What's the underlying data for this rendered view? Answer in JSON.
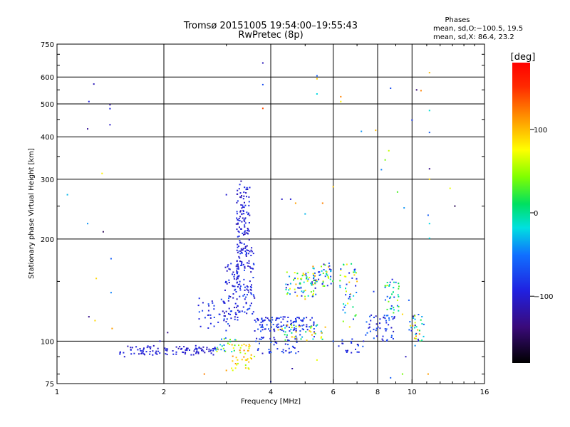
{
  "chart_data": {
    "type": "scatter",
    "title": "Tromsø 20151005 19:54:00–19:55:43",
    "subtitle": "RwPretec (8p)",
    "phases_block": {
      "heading": "Phases",
      "line1": "mean, sd,O:−100.5, 19.5",
      "line2": "mean, sd,X:  86.4, 23.2"
    },
    "xlabel": "Frequency [MHz]",
    "ylabel": "Stationary phase Virtual Height [km]",
    "x_scale": "log",
    "y_scale": "log",
    "xlim": [
      1,
      16
    ],
    "ylim": [
      75,
      750
    ],
    "x_ticks": [
      {
        "v": 1,
        "label": "1"
      },
      {
        "v": 2,
        "label": "2"
      },
      {
        "v": 4,
        "label": "4"
      },
      {
        "v": 6,
        "label": "6"
      },
      {
        "v": 8,
        "label": "8"
      },
      {
        "v": 10,
        "label": "10"
      },
      {
        "v": 16,
        "label": "16"
      }
    ],
    "y_ticks": [
      {
        "v": 75,
        "label": "75"
      },
      {
        "v": 100,
        "label": "100"
      },
      {
        "v": 200,
        "label": "200"
      },
      {
        "v": 300,
        "label": "300"
      },
      {
        "v": 400,
        "label": "400"
      },
      {
        "v": 500,
        "label": "500"
      },
      {
        "v": 600,
        "label": "600"
      },
      {
        "v": 750,
        "label": "750"
      }
    ],
    "grid": true,
    "colorbar": {
      "label": "[deg]",
      "range": [
        -180,
        180
      ],
      "ticks": [
        {
          "v": 100,
          "label": "100"
        },
        {
          "v": 0,
          "label": "0"
        },
        {
          "v": -100,
          "label": "−100"
        }
      ]
    },
    "color_value": "phase (deg)",
    "points": [
      [
        1.23,
        508,
        -95
      ],
      [
        1.27,
        572,
        -110
      ],
      [
        1.41,
        497,
        -120
      ],
      [
        1.41,
        484,
        -90
      ],
      [
        1.41,
        434,
        -105
      ],
      [
        1.22,
        422,
        -125
      ],
      [
        1.07,
        270,
        -30
      ],
      [
        1.34,
        312,
        80
      ],
      [
        1.22,
        222,
        -40
      ],
      [
        1.35,
        210,
        -150
      ],
      [
        1.42,
        175,
        -60
      ],
      [
        1.29,
        153,
        90
      ],
      [
        1.42,
        139,
        -45
      ],
      [
        1.23,
        118,
        -130
      ],
      [
        1.28,
        115,
        90
      ],
      [
        1.43,
        109,
        110
      ],
      [
        1.55,
        90,
        -100
      ],
      [
        1.65,
        92,
        -90
      ],
      [
        2.05,
        106,
        -130
      ],
      [
        1.95,
        100,
        -100
      ],
      [
        3.8,
        660,
        -110
      ],
      [
        3.8,
        570,
        -70
      ],
      [
        3.8,
        485,
        140
      ],
      [
        5.4,
        605,
        -60
      ],
      [
        5.4,
        593,
        95
      ],
      [
        5.4,
        535,
        -20
      ],
      [
        6.3,
        525,
        120
      ],
      [
        6.3,
        508,
        80
      ],
      [
        7.2,
        415,
        -40
      ],
      [
        7.9,
        418,
        100
      ],
      [
        8.7,
        556,
        -70
      ],
      [
        8.6,
        364,
        60
      ],
      [
        8.4,
        342,
        40
      ],
      [
        8.2,
        320,
        -45
      ],
      [
        10.0,
        448,
        -80
      ],
      [
        10.3,
        550,
        -140
      ],
      [
        10.6,
        547,
        120
      ],
      [
        11.2,
        618,
        100
      ],
      [
        11.2,
        478,
        -15
      ],
      [
        11.2,
        412,
        -60
      ],
      [
        11.2,
        322,
        -130
      ],
      [
        11.2,
        300,
        90
      ],
      [
        13.2,
        250,
        -150
      ],
      [
        12.8,
        282,
        70
      ],
      [
        9.1,
        275,
        30
      ],
      [
        6.0,
        285,
        95
      ],
      [
        9.5,
        247,
        -40
      ],
      [
        11.1,
        235,
        -60
      ],
      [
        11.2,
        222,
        -20
      ],
      [
        11.2,
        201,
        -20
      ],
      [
        4.3,
        262,
        -105
      ],
      [
        4.55,
        262,
        -100
      ],
      [
        4.7,
        255,
        110
      ],
      [
        5.6,
        255,
        120
      ],
      [
        5.0,
        237,
        -30
      ],
      [
        3.3,
        296,
        -120
      ],
      [
        3.0,
        270,
        -100
      ],
      [
        5.9,
        155,
        -70
      ],
      [
        5.0,
        157,
        110
      ],
      [
        5.0,
        133,
        100
      ],
      [
        8.8,
        152,
        -95
      ],
      [
        7.8,
        140,
        -80
      ],
      [
        8.4,
        144,
        -50
      ],
      [
        9.1,
        132,
        60
      ],
      [
        9.4,
        120,
        90
      ],
      [
        9.8,
        132,
        -60
      ],
      [
        10.2,
        116,
        -30
      ],
      [
        10.5,
        105,
        120
      ],
      [
        10.8,
        112,
        -60
      ],
      [
        10.2,
        97,
        -40
      ],
      [
        11.1,
        80,
        110
      ],
      [
        9.4,
        80,
        40
      ],
      [
        8.7,
        78,
        -60
      ],
      [
        5.4,
        88,
        70
      ],
      [
        4.6,
        83,
        -120
      ],
      [
        3.4,
        85,
        50
      ],
      [
        2.6,
        80,
        120
      ],
      [
        3.0,
        82,
        110
      ],
      [
        4.0,
        76,
        -90
      ],
      [
        6.3,
        162,
        80
      ],
      [
        7.0,
        150,
        100
      ],
      [
        7.3,
        100,
        -100
      ],
      [
        7.6,
        110,
        -110
      ],
      [
        6.0,
        100,
        -70
      ],
      [
        9.6,
        90,
        -110
      ],
      [
        6.5,
        137,
        -80
      ],
      [
        4.2,
        108,
        90
      ],
      [
        5.7,
        110,
        100
      ],
      [
        3.6,
        134,
        -110
      ]
    ],
    "clusters": [
      {
        "x": [
          1.5,
          2.8
        ],
        "y": [
          91,
          97
        ],
        "ph": [
          -115,
          -85
        ],
        "n": 110
      },
      {
        "x": [
          2.8,
          3.2
        ],
        "y": [
          93,
          103
        ],
        "ph": [
          -60,
          90
        ],
        "n": 25
      },
      {
        "x": [
          2.5,
          3.1
        ],
        "y": [
          107,
          135
        ],
        "ph": [
          -110,
          -60
        ],
        "n": 40
      },
      {
        "x": [
          2.95,
          3.25
        ],
        "y": [
          115,
          170
        ],
        "ph": [
          -120,
          -80
        ],
        "n": 60
      },
      {
        "x": [
          3.2,
          3.5
        ],
        "y": [
          165,
          290
        ],
        "ph": [
          -115,
          -80
        ],
        "n": 120
      },
      {
        "x": [
          3.2,
          3.6
        ],
        "y": [
          120,
          190
        ],
        "ph": [
          -110,
          -70
        ],
        "n": 90
      },
      {
        "x": [
          3.6,
          5.3
        ],
        "y": [
          107,
          118
        ],
        "ph": [
          -110,
          -60
        ],
        "n": 110
      },
      {
        "x": [
          4.4,
          5.4
        ],
        "y": [
          135,
          160
        ],
        "ph": [
          -110,
          110
        ],
        "n": 70
      },
      {
        "x": [
          5.2,
          6.0
        ],
        "y": [
          145,
          170
        ],
        "ph": [
          -120,
          120
        ],
        "n": 50
      },
      {
        "x": [
          3.1,
          3.6
        ],
        "y": [
          82,
          98
        ],
        "ph": [
          50,
          120
        ],
        "n": 40
      },
      {
        "x": [
          3.6,
          4.8
        ],
        "y": [
          92,
          103
        ],
        "ph": [
          -110,
          -60
        ],
        "n": 45
      },
      {
        "x": [
          4.3,
          5.6
        ],
        "y": [
          100,
          112
        ],
        "ph": [
          -110,
          110
        ],
        "n": 50
      },
      {
        "x": [
          6.2,
          7.0
        ],
        "y": [
          110,
          170
        ],
        "ph": [
          -100,
          110
        ],
        "n": 45
      },
      {
        "x": [
          7.4,
          9.0
        ],
        "y": [
          100,
          120
        ],
        "ph": [
          -110,
          -50
        ],
        "n": 50
      },
      {
        "x": [
          8.3,
          9.2
        ],
        "y": [
          120,
          150
        ],
        "ph": [
          -80,
          60
        ],
        "n": 35
      },
      {
        "x": [
          9.8,
          10.8
        ],
        "y": [
          100,
          120
        ],
        "ph": [
          -120,
          110
        ],
        "n": 30
      },
      {
        "x": [
          6.2,
          7.3
        ],
        "y": [
          92,
          102
        ],
        "ph": [
          -110,
          -60
        ],
        "n": 20
      }
    ]
  }
}
